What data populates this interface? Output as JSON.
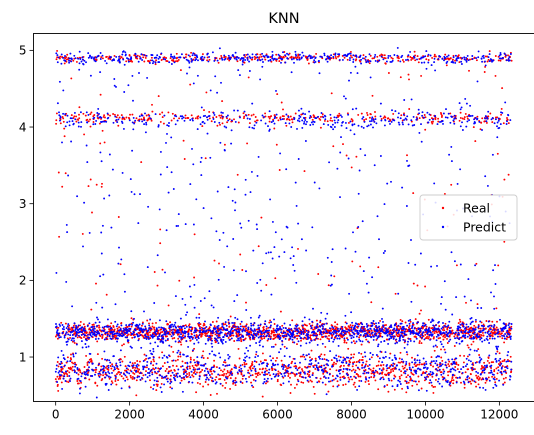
{
  "chart_data": {
    "type": "scatter",
    "title": "KNN",
    "xlabel": "",
    "ylabel": "",
    "xlim": [
      -600,
      12950
    ],
    "ylim": [
      0.42,
      5.22
    ],
    "x_ticks": [
      0,
      2000,
      4000,
      6000,
      8000,
      10000,
      12000
    ],
    "x_tick_labels": [
      "0",
      "2000",
      "4000",
      "6000",
      "8000",
      "10000",
      "12000"
    ],
    "y_ticks": [
      1,
      2,
      3,
      4,
      5
    ],
    "y_tick_labels": [
      "1",
      "2",
      "3",
      "4",
      "5"
    ],
    "grid": false,
    "legend_position": "center-right",
    "n_points": 12330,
    "series": [
      {
        "name": "Real",
        "color": "#ff0000",
        "marker_size": 1.5,
        "bands": [
          {
            "center": 4.9,
            "spread": 0.03,
            "weight": 0.12
          },
          {
            "center": 4.12,
            "spread": 0.04,
            "weight": 0.09
          },
          {
            "center": 1.33,
            "spread": 0.06,
            "weight": 0.44
          },
          {
            "center": 0.82,
            "spread": 0.11,
            "weight": 0.3
          }
        ],
        "uniform_weight": 0.05,
        "uniform_range": [
          0.65,
          5.0
        ]
      },
      {
        "name": "Predict",
        "color": "#0000ff",
        "marker_size": 1.5,
        "bands": [
          {
            "center": 4.9,
            "spread": 0.035,
            "weight": 0.13
          },
          {
            "center": 4.1,
            "spread": 0.06,
            "weight": 0.1
          },
          {
            "center": 1.32,
            "spread": 0.07,
            "weight": 0.38
          },
          {
            "center": 0.85,
            "spread": 0.13,
            "weight": 0.24
          }
        ],
        "uniform_weight": 0.15,
        "uniform_range": [
          0.65,
          4.95
        ]
      }
    ]
  }
}
